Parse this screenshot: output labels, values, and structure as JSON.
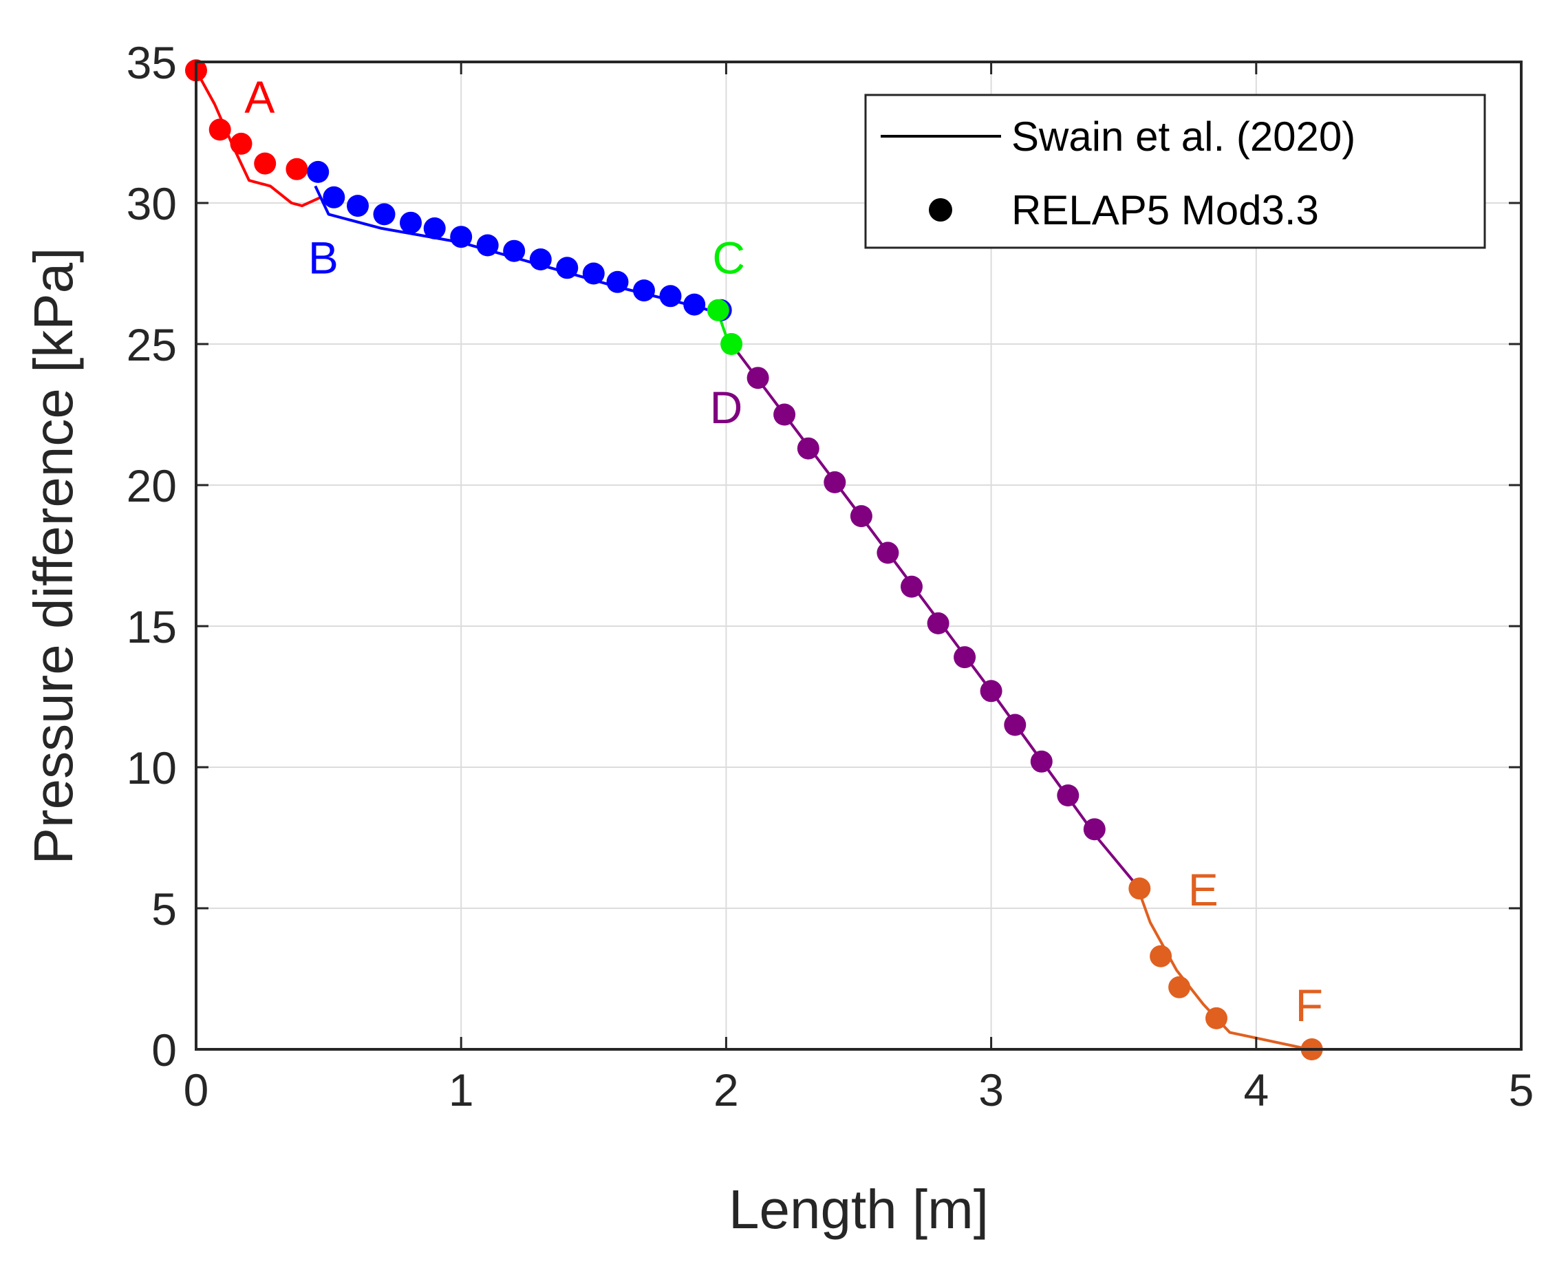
{
  "chart_data": {
    "type": "line",
    "title": "",
    "xlabel": "Length [m]",
    "ylabel": "Pressure difference [kPa]",
    "xlim": [
      0,
      5
    ],
    "ylim": [
      0,
      35
    ],
    "xticks": [
      0,
      1,
      2,
      3,
      4,
      5
    ],
    "yticks": [
      0,
      5,
      10,
      15,
      20,
      25,
      30,
      35
    ],
    "xtick_labels": [
      "0",
      "1",
      "2",
      "3",
      "4",
      "5"
    ],
    "ytick_labels": [
      "0",
      "5",
      "10",
      "15",
      "20",
      "25",
      "30",
      "35"
    ],
    "grid": true,
    "legend": {
      "position": "top-right",
      "entries": [
        {
          "label": "Swain et al. (2020)",
          "marker": "line",
          "color": "#000000"
        },
        {
          "label": "RELAP5 Mod3.3",
          "marker": "dot",
          "color": "#000000"
        }
      ]
    },
    "series": [
      {
        "name": "A",
        "color": "#ff0000",
        "line_x": [
          0,
          0.07,
          0.14,
          0.2,
          0.28,
          0.36,
          0.4,
          0.47
        ],
        "line_y": [
          34.7,
          33.5,
          32.0,
          30.8,
          30.6,
          30.0,
          29.9,
          30.2
        ],
        "points_x": [
          0,
          0.09,
          0.17,
          0.26,
          0.38
        ],
        "points_y": [
          34.7,
          32.6,
          32.1,
          31.4,
          31.2
        ]
      },
      {
        "name": "B",
        "color": "#0000ff",
        "line_x": [
          0.45,
          0.5,
          0.7,
          1.0,
          1.3,
          1.6,
          1.9,
          1.97
        ],
        "line_y": [
          30.6,
          29.6,
          29.1,
          28.6,
          27.8,
          27.0,
          26.3,
          26.1
        ],
        "points_x": [
          0.46,
          0.52,
          0.61,
          0.71,
          0.81,
          0.9,
          1.0,
          1.1,
          1.2,
          1.3,
          1.4,
          1.5,
          1.59,
          1.69,
          1.79,
          1.88,
          1.98
        ],
        "points_y": [
          31.1,
          30.2,
          29.9,
          29.6,
          29.3,
          29.1,
          28.8,
          28.5,
          28.3,
          28.0,
          27.7,
          27.5,
          27.2,
          26.9,
          26.7,
          26.4,
          26.2
        ]
      },
      {
        "name": "C",
        "color": "#00ee00",
        "line_x": [
          1.97,
          2.01
        ],
        "line_y": [
          26.1,
          25.0
        ],
        "points_x": [
          1.97,
          2.02
        ],
        "points_y": [
          26.2,
          25.0
        ]
      },
      {
        "name": "D",
        "color": "#800080",
        "line_x": [
          2.02,
          2.5,
          3.0,
          3.4,
          3.55
        ],
        "line_y": [
          25.0,
          19.0,
          12.7,
          7.5,
          5.8
        ],
        "points_x": [
          2.12,
          2.22,
          2.31,
          2.41,
          2.51,
          2.61,
          2.7,
          2.8,
          2.9,
          3.0,
          3.09,
          3.19,
          3.29,
          3.39
        ],
        "points_y": [
          23.8,
          22.5,
          21.3,
          20.1,
          18.9,
          17.6,
          16.4,
          15.1,
          13.9,
          12.7,
          11.5,
          10.2,
          9.0,
          7.8
        ]
      },
      {
        "name": "E–F",
        "color": "#e06020",
        "line_x": [
          3.55,
          3.6,
          3.7,
          3.8,
          3.9,
          4.0,
          4.2
        ],
        "line_y": [
          5.8,
          4.5,
          2.8,
          1.6,
          0.6,
          0.4,
          0.0
        ],
        "points_x": [
          3.56,
          3.64,
          3.71,
          3.85,
          4.21
        ],
        "points_y": [
          5.7,
          3.3,
          2.2,
          1.1,
          0.0
        ]
      }
    ],
    "annotations": [
      {
        "text": "A",
        "x": 0.24,
        "y": 33.2,
        "color": "#ff0000"
      },
      {
        "text": "B",
        "x": 0.48,
        "y": 27.5,
        "color": "#0000ff"
      },
      {
        "text": "C",
        "x": 2.01,
        "y": 27.5,
        "color": "#00ee00"
      },
      {
        "text": "D",
        "x": 2.0,
        "y": 22.2,
        "color": "#800080"
      },
      {
        "text": "E",
        "x": 3.8,
        "y": 5.1,
        "color": "#e06020"
      },
      {
        "text": "F",
        "x": 4.2,
        "y": 1.0,
        "color": "#e06020"
      }
    ]
  }
}
